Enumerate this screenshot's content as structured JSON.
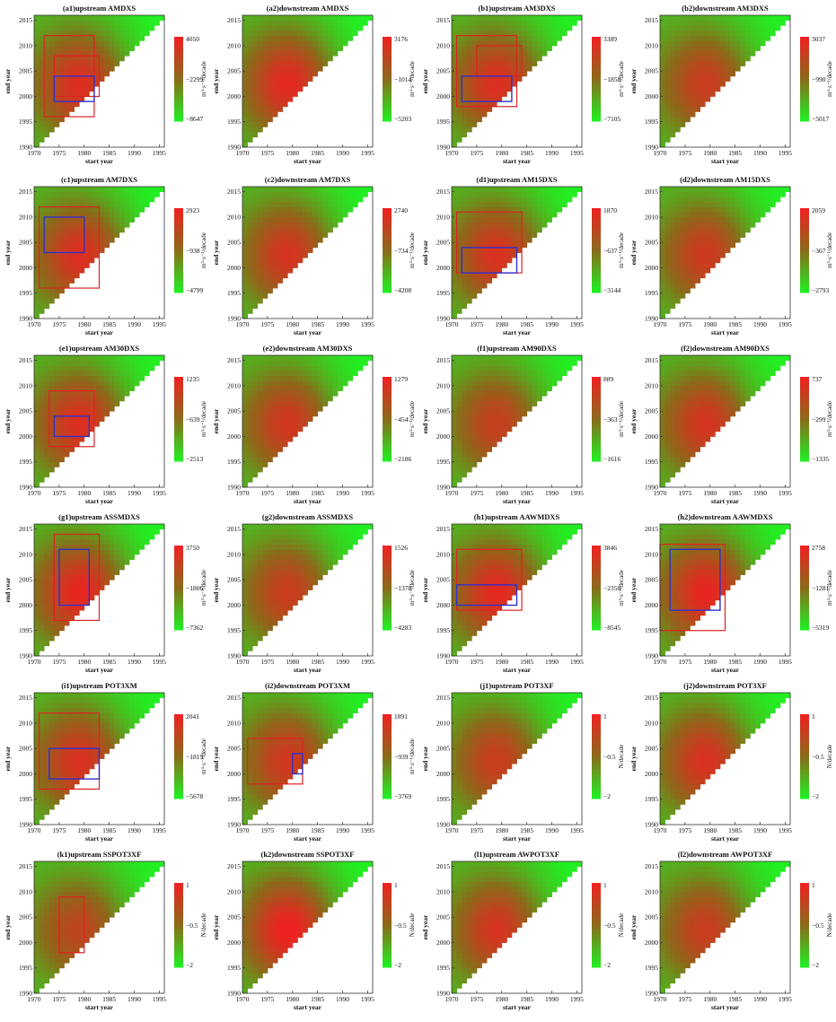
{
  "figure": {
    "colors": {
      "low": "#22ee22",
      "mid": "#8b6a1a",
      "high": "#ee2222",
      "sig_red": "#dd2222",
      "sig_blue": "#3030cc"
    },
    "panels": [
      {
        "title": "(a1)upstream AMDXS",
        "xlabel": "start year",
        "ylabel": "end year",
        "xticks": [
          "1970",
          "1975",
          "1980",
          "1985",
          "1990",
          "1995"
        ],
        "yticks": [
          "2015",
          "2010",
          "2005",
          "2000",
          "1995",
          "1990"
        ],
        "colorbar": {
          "max": "4050",
          "mid": "−2299",
          "min": "−8647",
          "unit": "m³·s⁻¹/decade"
        }
      },
      {
        "title": "(a2)downstream AMDXS",
        "xlabel": "start year",
        "ylabel": "end year",
        "xticks": [
          "1970",
          "1975",
          "1980",
          "1985",
          "1990",
          "1995"
        ],
        "yticks": [
          "2015",
          "2010",
          "2005",
          "2000",
          "1995",
          "1990"
        ],
        "colorbar": {
          "max": "3176",
          "mid": "−1014",
          "min": "−5203",
          "unit": "m³·s⁻¹/decade"
        }
      },
      {
        "title": "(b1)upstream AM3DXS",
        "xlabel": "start year",
        "ylabel": "end year",
        "xticks": [
          "1970",
          "1975",
          "1980",
          "1985",
          "1990",
          "1995"
        ],
        "yticks": [
          "2015",
          "2010",
          "2005",
          "2000",
          "1995",
          "1990"
        ],
        "colorbar": {
          "max": "3389",
          "mid": "−1858",
          "min": "−7105",
          "unit": "m³·s⁻¹/decade"
        }
      },
      {
        "title": "(b2)downstream AM3DXS",
        "xlabel": "start year",
        "ylabel": "end year",
        "xticks": [
          "1970",
          "1975",
          "1980",
          "1985",
          "1990",
          "1995"
        ],
        "yticks": [
          "2015",
          "2010",
          "2005",
          "2000",
          "1995",
          "1990"
        ],
        "colorbar": {
          "max": "3037",
          "mid": "−990",
          "min": "−5017",
          "unit": "m³·s⁻¹/decade"
        }
      },
      {
        "title": "(c1)upstream AM7DXS",
        "xlabel": "start year",
        "ylabel": "end year",
        "xticks": [
          "1970",
          "1975",
          "1980",
          "1985",
          "1990",
          "1995"
        ],
        "yticks": [
          "2015",
          "2010",
          "2005",
          "2000",
          "1995",
          "1990"
        ],
        "colorbar": {
          "max": "2923",
          "mid": "−938",
          "min": "−4799",
          "unit": "m³·s⁻¹/decade"
        }
      },
      {
        "title": "(c2)downstream AM7DXS",
        "xlabel": "start year",
        "ylabel": "end year",
        "xticks": [
          "1970",
          "1975",
          "1980",
          "1985",
          "1990",
          "1995"
        ],
        "yticks": [
          "2015",
          "2010",
          "2005",
          "2000",
          "1995",
          "1990"
        ],
        "colorbar": {
          "max": "2740",
          "mid": "−734",
          "min": "−4208",
          "unit": "m³·s⁻¹/decade"
        }
      },
      {
        "title": "(d1)upstream AM15DXS",
        "xlabel": "start year",
        "ylabel": "end year",
        "xticks": [
          "1970",
          "1975",
          "1980",
          "1985",
          "1990",
          "1995"
        ],
        "yticks": [
          "2015",
          "2010",
          "2005",
          "2000",
          "1995",
          "1990"
        ],
        "colorbar": {
          "max": "1870",
          "mid": "−637",
          "min": "−3144",
          "unit": "m³·s⁻¹/decade"
        }
      },
      {
        "title": "(d2)downstream AM15DXS",
        "xlabel": "start year",
        "ylabel": "end year",
        "xticks": [
          "1970",
          "1975",
          "1980",
          "1985",
          "1990",
          "1995"
        ],
        "yticks": [
          "2015",
          "2010",
          "2005",
          "2000",
          "1995",
          "1990"
        ],
        "colorbar": {
          "max": "2059",
          "mid": "−367",
          "min": "−2793",
          "unit": "m³·s⁻¹/decade"
        }
      },
      {
        "title": "(e1)upstream AM30DXS",
        "xlabel": "start year",
        "ylabel": "end year",
        "xticks": [
          "1970",
          "1975",
          "1980",
          "1985",
          "1990",
          "1995"
        ],
        "yticks": [
          "2015",
          "2010",
          "2005",
          "2000",
          "1995",
          "1990"
        ],
        "colorbar": {
          "max": "1235",
          "mid": "−639",
          "min": "−2513",
          "unit": "m³·s⁻¹/decade"
        }
      },
      {
        "title": "(e2)downstream AM30DXS",
        "xlabel": "start year",
        "ylabel": "end year",
        "xticks": [
          "1970",
          "1975",
          "1980",
          "1985",
          "1990",
          "1995"
        ],
        "yticks": [
          "2015",
          "2010",
          "2005",
          "2000",
          "1995",
          "1990"
        ],
        "colorbar": {
          "max": "1279",
          "mid": "−454",
          "min": "−2186",
          "unit": "m³·s⁻¹/decade"
        }
      },
      {
        "title": "(f1)upstream AM90DXS",
        "xlabel": "start year",
        "ylabel": "end year",
        "xticks": [
          "1970",
          "1975",
          "1980",
          "1985",
          "1990",
          "1995"
        ],
        "yticks": [
          "2015",
          "2010",
          "2005",
          "2000",
          "1995",
          "1990"
        ],
        "colorbar": {
          "max": "889",
          "mid": "−363",
          "min": "−1616",
          "unit": "m³·s⁻¹/decade"
        }
      },
      {
        "title": "(f2)downstream AM90DXS",
        "xlabel": "start year",
        "ylabel": "end year",
        "xticks": [
          "1970",
          "1975",
          "1980",
          "1985",
          "1990",
          "1995"
        ],
        "yticks": [
          "2015",
          "2010",
          "2005",
          "2000",
          "1995",
          "1990"
        ],
        "colorbar": {
          "max": "737",
          "mid": "−299",
          "min": "−1335",
          "unit": "m³·s⁻¹/decade"
        }
      },
      {
        "title": "(g1)upstream ASSMDXS",
        "xlabel": "start year",
        "ylabel": "end year",
        "xticks": [
          "1970",
          "1975",
          "1980",
          "1985",
          "1990",
          "1995"
        ],
        "yticks": [
          "2015",
          "2010",
          "2005",
          "2000",
          "1995",
          "1990"
        ],
        "colorbar": {
          "max": "3750",
          "mid": "−1806",
          "min": "−7362",
          "unit": "m³·s⁻¹/decade"
        }
      },
      {
        "title": "(g2)downstream ASSMDXS",
        "xlabel": "start year",
        "ylabel": "end year",
        "xticks": [
          "1970",
          "1975",
          "1980",
          "1985",
          "1990",
          "1995"
        ],
        "yticks": [
          "2015",
          "2010",
          "2005",
          "2000",
          "1995",
          "1990"
        ],
        "colorbar": {
          "max": "1526",
          "mid": "−1378",
          "min": "−4283",
          "unit": "m³·s⁻¹/decade"
        }
      },
      {
        "title": "(h1)upstream AAWMDXS",
        "xlabel": "start year",
        "ylabel": "end year",
        "xticks": [
          "1970",
          "1975",
          "1980",
          "1985",
          "1990",
          "1995"
        ],
        "yticks": [
          "2015",
          "2010",
          "2005",
          "2000",
          "1995",
          "1990"
        ],
        "colorbar": {
          "max": "3846",
          "mid": "−2350",
          "min": "−8545",
          "unit": "m³·s⁻¹/decade"
        }
      },
      {
        "title": "(h2)downstream AAWMDXS",
        "xlabel": "start year",
        "ylabel": "end year",
        "xticks": [
          "1970",
          "1975",
          "1980",
          "1985",
          "1990",
          "1995"
        ],
        "yticks": [
          "2015",
          "2010",
          "2005",
          "2000",
          "1995",
          "1990"
        ],
        "colorbar": {
          "max": "2758",
          "mid": "−1281",
          "min": "−5319",
          "unit": "m³·s⁻¹/decade"
        }
      },
      {
        "title": "(i1)upstream POT3XM",
        "xlabel": "start year",
        "ylabel": "end year",
        "xticks": [
          "1970",
          "1975",
          "1980",
          "1985",
          "1990",
          "1995"
        ],
        "yticks": [
          "2015",
          "2010",
          "2005",
          "2000",
          "1995",
          "1990"
        ],
        "colorbar": {
          "max": "2041",
          "mid": "−1819",
          "min": "−5678",
          "unit": "m³·s⁻¹/decade"
        }
      },
      {
        "title": "(i2)downstream POT3XM",
        "xlabel": "start year",
        "ylabel": "end year",
        "xticks": [
          "1970",
          "1975",
          "1980",
          "1985",
          "1990",
          "1995"
        ],
        "yticks": [
          "2015",
          "2010",
          "2005",
          "2000",
          "1995",
          "1990"
        ],
        "colorbar": {
          "max": "1891",
          "mid": "−939",
          "min": "−3769",
          "unit": "m³·s⁻¹/decade"
        }
      },
      {
        "title": "(j1)upstream POT3XF",
        "xlabel": "start year",
        "ylabel": "end year",
        "xticks": [
          "1970",
          "1975",
          "1980",
          "1985",
          "1990",
          "1995"
        ],
        "yticks": [
          "2015",
          "2010",
          "2005",
          "2000",
          "1995",
          "1990"
        ],
        "colorbar": {
          "max": "1",
          "mid": "−0.5",
          "min": "−2",
          "unit": "N/decade"
        }
      },
      {
        "title": "(j2)downstream POT3XF",
        "xlabel": "start year",
        "ylabel": "end year",
        "xticks": [
          "1970",
          "1975",
          "1980",
          "1985",
          "1990",
          "1995"
        ],
        "yticks": [
          "2015",
          "2010",
          "2005",
          "2000",
          "1995",
          "1990"
        ],
        "colorbar": {
          "max": "1",
          "mid": "−0.5",
          "min": "−2",
          "unit": "N/decade"
        }
      },
      {
        "title": "(k1)upstream SSPOT3XF",
        "xlabel": "start year",
        "ylabel": "end year",
        "xticks": [
          "1970",
          "1975",
          "1980",
          "1985",
          "1990",
          "1995"
        ],
        "yticks": [
          "2015",
          "2010",
          "2005",
          "2000",
          "1995",
          "1990"
        ],
        "colorbar": {
          "max": "1",
          "mid": "−0.5",
          "min": "−2",
          "unit": "N/decade"
        }
      },
      {
        "title": "(k2)downstream SSPOT3XF",
        "xlabel": "start year",
        "ylabel": "end year",
        "xticks": [
          "1970",
          "1975",
          "1980",
          "1985",
          "1990",
          "1995"
        ],
        "yticks": [
          "2015",
          "2010",
          "2005",
          "2000",
          "1995",
          "1990"
        ],
        "colorbar": {
          "max": "1",
          "mid": "−0.5",
          "min": "−2",
          "unit": "N/decade"
        }
      },
      {
        "title": "(l1)upstream AWPOT3XF",
        "xlabel": "start year",
        "ylabel": "end year",
        "xticks": [
          "1970",
          "1975",
          "1980",
          "1985",
          "1990",
          "1995"
        ],
        "yticks": [
          "2015",
          "2010",
          "2005",
          "2000",
          "1995",
          "1990"
        ],
        "colorbar": {
          "max": "1",
          "mid": "−0.5",
          "min": "−2",
          "unit": "N/decade"
        }
      },
      {
        "title": "(l2)downstream AWPOT3XF",
        "xlabel": "start year",
        "ylabel": "end year",
        "xticks": [
          "1970",
          "1975",
          "1980",
          "1985",
          "1990",
          "1995"
        ],
        "yticks": [
          "2015",
          "2010",
          "2005",
          "2000",
          "1995",
          "1990"
        ],
        "colorbar": {
          "max": "1",
          "mid": "−0.5",
          "min": "−2",
          "unit": "N/decade"
        }
      }
    ]
  },
  "chart_data": {
    "type": "heatmap",
    "description_fields": "start year (x) vs end year (y) triangular trend heatmaps, 24 panels",
    "x_range": [
      1970,
      1995
    ],
    "y_range": [
      1990,
      2016
    ],
    "xlabel": "start year",
    "ylabel": "end year"
  }
}
